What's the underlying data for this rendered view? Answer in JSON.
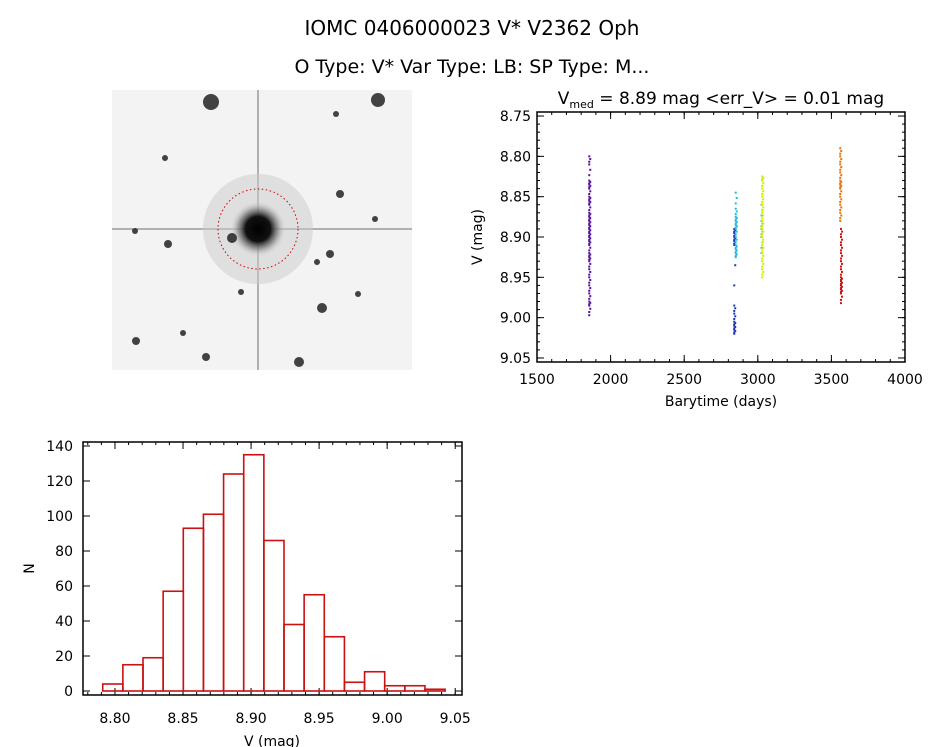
{
  "header": {
    "title": "IOMC 0406000023    V* V2362 Oph",
    "subtitle": "O Type: V*  Var Type: LB:  SP Type: M..."
  },
  "image_panel": {
    "description_icon": "sky-image",
    "marker_color": "#cc0000"
  },
  "chart_data": [
    {
      "type": "scatter",
      "title_parts": {
        "v": "V",
        "sub": "med",
        "rest": " = 8.89 mag <err_V> = 0.01 mag"
      },
      "xlabel": "Barytime (days)",
      "ylabel": "V (mag)",
      "xlim": [
        1500,
        4000
      ],
      "ylim": [
        8.745,
        9.055
      ],
      "y_inverted": true,
      "xticks": [
        1500,
        2000,
        2500,
        3000,
        3500,
        4000
      ],
      "yticks": [
        "8.75",
        "8.80",
        "8.85",
        "8.90",
        "8.95",
        "9.00",
        "9.05"
      ],
      "groups": [
        {
          "color": "#55119a",
          "x": 1855,
          "v": [
            8.8,
            8.81,
            8.83,
            8.835,
            8.84,
            8.85,
            8.855,
            8.86,
            8.87,
            8.875,
            8.88,
            8.885,
            8.89,
            8.895,
            8.9,
            8.905,
            8.91,
            8.92,
            8.925,
            8.93,
            8.94,
            8.95,
            8.96,
            8.97,
            8.98,
            8.985,
            8.997
          ]
        },
        {
          "color": "#1a3ab0",
          "x": 2840,
          "v": [
            8.89,
            8.895,
            8.9,
            8.905,
            8.91,
            8.985,
            8.995,
            9.005,
            9.01,
            9.015,
            9.02
          ]
        },
        {
          "color": "#22bbdd",
          "x": 2850,
          "v": [
            8.845,
            8.865,
            8.875,
            8.88,
            8.885,
            8.89,
            8.9,
            8.91,
            8.915,
            8.92,
            8.925
          ]
        },
        {
          "color": "#66cc44",
          "x": 3025,
          "v": [
            8.86,
            8.88,
            8.89,
            8.9,
            8.92
          ]
        },
        {
          "color": "#ccee00",
          "x": 3030,
          "v": [
            8.825,
            8.83,
            8.84,
            8.85,
            8.86,
            8.87,
            8.88,
            8.89,
            8.9,
            8.91,
            8.92,
            8.93,
            8.94,
            8.95
          ]
        },
        {
          "color": "#dd7711",
          "x": 3560,
          "v": [
            8.79,
            8.8,
            8.81,
            8.82,
            8.83,
            8.835,
            8.84,
            8.85,
            8.86,
            8.87,
            8.88
          ]
        },
        {
          "color": "#cc1111",
          "x": 3565,
          "v": [
            8.89,
            8.9,
            8.91,
            8.92,
            8.93,
            8.94,
            8.95,
            8.955,
            8.96,
            8.965,
            8.97,
            8.982
          ]
        }
      ]
    },
    {
      "type": "bar",
      "xlabel": "V (mag)",
      "ylabel": "N",
      "xlim": [
        8.7765,
        9.055
      ],
      "ylim": [
        0,
        140
      ],
      "xticks": [
        "8.80",
        "8.85",
        "8.90",
        "8.95",
        "9.00",
        "9.05"
      ],
      "yticks": [
        "0",
        "20",
        "40",
        "60",
        "80",
        "100",
        "120",
        "140"
      ],
      "bin_start": 8.791,
      "bin_width": 0.0148,
      "values": [
        4,
        15,
        19,
        57,
        93,
        101,
        124,
        135,
        86,
        38,
        55,
        31,
        5,
        11,
        3,
        3,
        1
      ],
      "color": "#cc1111"
    }
  ]
}
